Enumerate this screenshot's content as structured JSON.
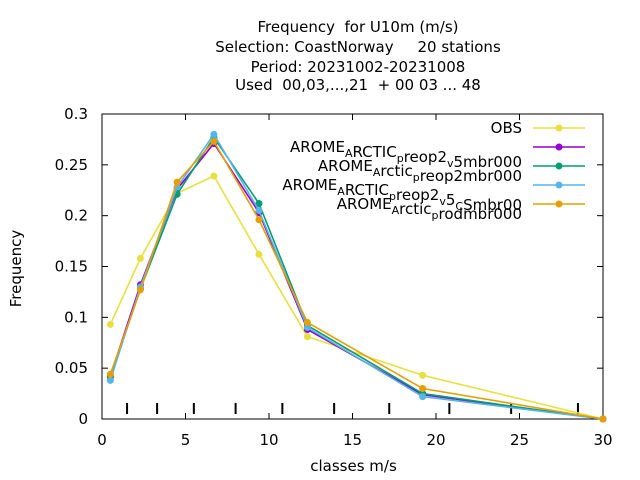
{
  "title_lines": [
    "Frequency  for U10m (m/s)",
    "Selection: CoastNorway     20 stations",
    "Period: 20231002-20231008",
    "Used  00,03,...,21  + 00 03 ... 48"
  ],
  "chart_data": {
    "type": "line",
    "xlabel": "classes m/s",
    "ylabel": "Frequency",
    "xlim": [
      0,
      30
    ],
    "ylim": [
      0,
      0.3
    ],
    "xticks": [
      0,
      5,
      10,
      15,
      20,
      25,
      30
    ],
    "yticks": [
      0,
      0.05,
      0.1,
      0.15,
      0.2,
      0.25,
      0.3
    ],
    "ytick_labels": [
      "0",
      "0.05",
      "0.1",
      "0.15",
      "0.2",
      "0.25",
      "0.3"
    ],
    "legend_position": "top-right",
    "class_boundary_marks": [
      1.5,
      3.3,
      5.5,
      8.0,
      10.8,
      13.9,
      17.2,
      20.8,
      24.5,
      28.5
    ],
    "series": [
      {
        "name": "OBS",
        "name_parts": [
          {
            "t": "OBS"
          }
        ],
        "color": "#e8e040",
        "x": [
          0.5,
          2.3,
          4.5,
          6.7,
          9.4,
          12.3,
          19.2,
          30
        ],
        "values": [
          0.093,
          0.158,
          0.222,
          0.239,
          0.162,
          0.081,
          0.043,
          0.0
        ]
      },
      {
        "name": "AROME_ARCTIC_preop2_v5mbr000",
        "name_parts": [
          {
            "t": "AROME"
          },
          {
            "t": "A",
            "s": "sub"
          },
          {
            "t": "RCTIC"
          },
          {
            "t": "p",
            "s": "sub"
          },
          {
            "t": "reop2"
          },
          {
            "t": "v",
            "s": "sub"
          },
          {
            "t": "5mbr000"
          }
        ],
        "color": "#9400d3",
        "x": [
          0.5,
          2.3,
          4.5,
          6.7,
          9.4,
          12.3,
          19.2,
          30
        ],
        "values": [
          0.042,
          0.132,
          0.226,
          0.271,
          0.203,
          0.088,
          0.024,
          0.0
        ]
      },
      {
        "name": "AROME_Arctic_preop2mbr000",
        "name_parts": [
          {
            "t": "AROME"
          },
          {
            "t": "A",
            "s": "sub"
          },
          {
            "t": "rctic"
          },
          {
            "t": "p",
            "s": "sub"
          },
          {
            "t": "reop2mbr000"
          }
        ],
        "color": "#009e73",
        "x": [
          0.5,
          2.3,
          4.5,
          6.7,
          9.4,
          12.3,
          19.2,
          30
        ],
        "values": [
          0.041,
          0.128,
          0.221,
          0.277,
          0.212,
          0.092,
          0.025,
          0.0
        ]
      },
      {
        "name": "AROME_ARCTIC_preop2_v5_CSmbr00",
        "name_parts": [
          {
            "t": "AROME"
          },
          {
            "t": "A",
            "s": "sub"
          },
          {
            "t": "RCTIC"
          },
          {
            "t": "p",
            "s": "sub"
          },
          {
            "t": "reop2"
          },
          {
            "t": "v",
            "s": "sub"
          },
          {
            "t": "5"
          },
          {
            "t": "C",
            "s": "sub"
          },
          {
            "t": "Smbr00"
          }
        ],
        "color": "#56b4e9",
        "x": [
          0.5,
          2.3,
          4.5,
          6.7,
          9.4,
          12.3,
          19.2,
          30
        ],
        "values": [
          0.038,
          0.13,
          0.228,
          0.28,
          0.205,
          0.09,
          0.022,
          0.0
        ]
      },
      {
        "name": "AROME_Arctic_prodmbr000",
        "name_parts": [
          {
            "t": "AROME"
          },
          {
            "t": "A",
            "s": "sub"
          },
          {
            "t": "rctic"
          },
          {
            "t": "p",
            "s": "sub"
          },
          {
            "t": "rodmbr000"
          }
        ],
        "color": "#e69f00",
        "x": [
          0.5,
          2.3,
          4.5,
          6.7,
          9.4,
          12.3,
          19.2,
          30
        ],
        "values": [
          0.044,
          0.127,
          0.233,
          0.273,
          0.196,
          0.095,
          0.03,
          0.0
        ]
      }
    ]
  }
}
